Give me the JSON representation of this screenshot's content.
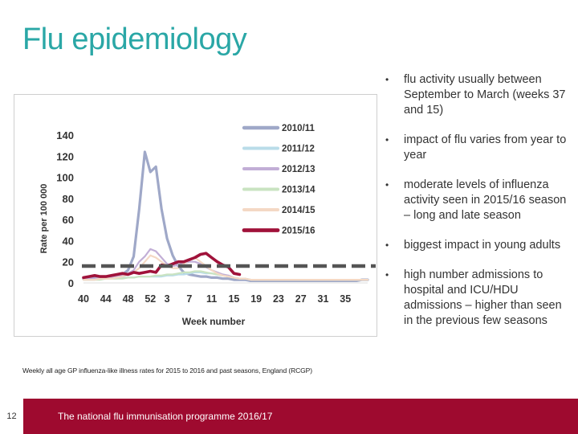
{
  "slide": {
    "title": "Flu epidemiology",
    "caption": "Weekly all age GP influenza-like illness rates for 2015 to 2016 and past seasons, England (RCGP)",
    "bullets": [
      "flu activity usually between September to March (weeks 37 and 15)",
      "impact of flu varies from year to year",
      "moderate levels of influenza activity seen in 2015/16 season – long and late season",
      "biggest impact in young adults",
      "high number admissions to hospital and ICU/HDU admissions – higher than seen in the previous few seasons"
    ],
    "bullet_marker": "•",
    "footer": {
      "slide_number": "12",
      "text": "The national flu immunisation programme 2016/17"
    },
    "colors": {
      "title": "#2aa7a6",
      "footer": "#9e0a2f"
    }
  },
  "chart_data": {
    "type": "line",
    "title": "",
    "xlabel": "Week number",
    "ylabel": "Rate per 100 000",
    "ylim": [
      0,
      140
    ],
    "yticks": [
      0,
      20,
      40,
      60,
      80,
      100,
      120,
      140
    ],
    "xticks": [
      "40",
      "44",
      "48",
      "52",
      "3",
      "7",
      "11",
      "15",
      "19",
      "23",
      "27",
      "31",
      "35"
    ],
    "x_weeks": [
      "40",
      "41",
      "42",
      "43",
      "44",
      "45",
      "46",
      "47",
      "48",
      "49",
      "50",
      "51",
      "52",
      "1",
      "2",
      "3",
      "4",
      "5",
      "6",
      "7",
      "8",
      "9",
      "10",
      "11",
      "12",
      "13",
      "14",
      "15",
      "16",
      "17",
      "18",
      "19",
      "20",
      "21",
      "22",
      "23",
      "24",
      "25",
      "26",
      "27",
      "28",
      "29",
      "30",
      "31",
      "32",
      "33",
      "34",
      "35",
      "36",
      "37",
      "38",
      "39"
    ],
    "baseline": {
      "value": 16,
      "style": "dashed",
      "color": "#555555"
    },
    "legend_position": "right",
    "series": [
      {
        "name": "2010/11",
        "color": "#9fa8c8",
        "width": 3.2,
        "values": [
          4,
          4,
          5,
          5,
          5,
          6,
          6,
          8,
          12,
          25,
          70,
          124,
          105,
          110,
          70,
          42,
          26,
          16,
          10,
          8,
          7,
          6,
          6,
          5,
          5,
          4,
          4,
          3,
          3,
          3,
          2,
          2,
          2,
          2,
          2,
          2,
          2,
          2,
          2,
          2,
          2,
          2,
          2,
          2,
          2,
          2,
          2,
          2,
          2,
          2,
          3,
          3
        ]
      },
      {
        "name": "2011/12",
        "color": "#b9dce9",
        "width": 2.2,
        "values": [
          3,
          3,
          3,
          4,
          4,
          4,
          4,
          5,
          5,
          5,
          6,
          6,
          6,
          6,
          6,
          7,
          7,
          8,
          8,
          9,
          10,
          10,
          9,
          9,
          8,
          7,
          6,
          5,
          4,
          4,
          3,
          3,
          3,
          3,
          3,
          3,
          3,
          3,
          3,
          3,
          3,
          3,
          3,
          3,
          3,
          3,
          3,
          3,
          3,
          3,
          3,
          3
        ]
      },
      {
        "name": "2012/13",
        "color": "#c2aed6",
        "width": 2.2,
        "values": [
          4,
          4,
          4,
          5,
          5,
          5,
          6,
          7,
          9,
          12,
          20,
          25,
          32,
          30,
          24,
          18,
          16,
          17,
          19,
          20,
          20,
          18,
          15,
          12,
          10,
          8,
          7,
          5,
          4,
          4,
          3,
          3,
          3,
          3,
          3,
          3,
          3,
          3,
          3,
          3,
          3,
          3,
          3,
          3,
          3,
          3,
          3,
          3,
          3,
          3,
          3,
          3
        ]
      },
      {
        "name": "2013/14",
        "color": "#c9e3c1",
        "width": 2.2,
        "values": [
          3,
          3,
          3,
          3,
          4,
          4,
          4,
          4,
          5,
          5,
          6,
          6,
          6,
          7,
          7,
          8,
          8,
          9,
          10,
          10,
          11,
          11,
          10,
          9,
          8,
          7,
          6,
          5,
          4,
          4,
          3,
          3,
          3,
          3,
          3,
          3,
          3,
          3,
          3,
          3,
          3,
          3,
          3,
          3,
          3,
          3,
          3,
          3,
          3,
          3,
          3,
          3
        ]
      },
      {
        "name": "2014/15",
        "color": "#f4d8c4",
        "width": 2.2,
        "values": [
          3,
          3,
          3,
          4,
          4,
          4,
          5,
          6,
          8,
          10,
          14,
          20,
          26,
          24,
          20,
          16,
          14,
          14,
          18,
          22,
          24,
          20,
          16,
          12,
          9,
          7,
          6,
          5,
          4,
          4,
          3,
          3,
          3,
          3,
          3,
          3,
          3,
          3,
          3,
          3,
          3,
          3,
          3,
          3,
          3,
          3,
          3,
          3,
          3,
          3,
          3,
          3
        ]
      },
      {
        "name": "2015/16",
        "color": "#a0123a",
        "width": 3.6,
        "values": [
          5,
          6,
          7,
          6,
          6,
          7,
          8,
          9,
          8,
          10,
          9,
          10,
          11,
          10,
          17,
          16,
          18,
          20,
          20,
          22,
          24,
          27,
          28,
          24,
          20,
          17,
          15,
          9,
          8
        ]
      }
    ]
  }
}
